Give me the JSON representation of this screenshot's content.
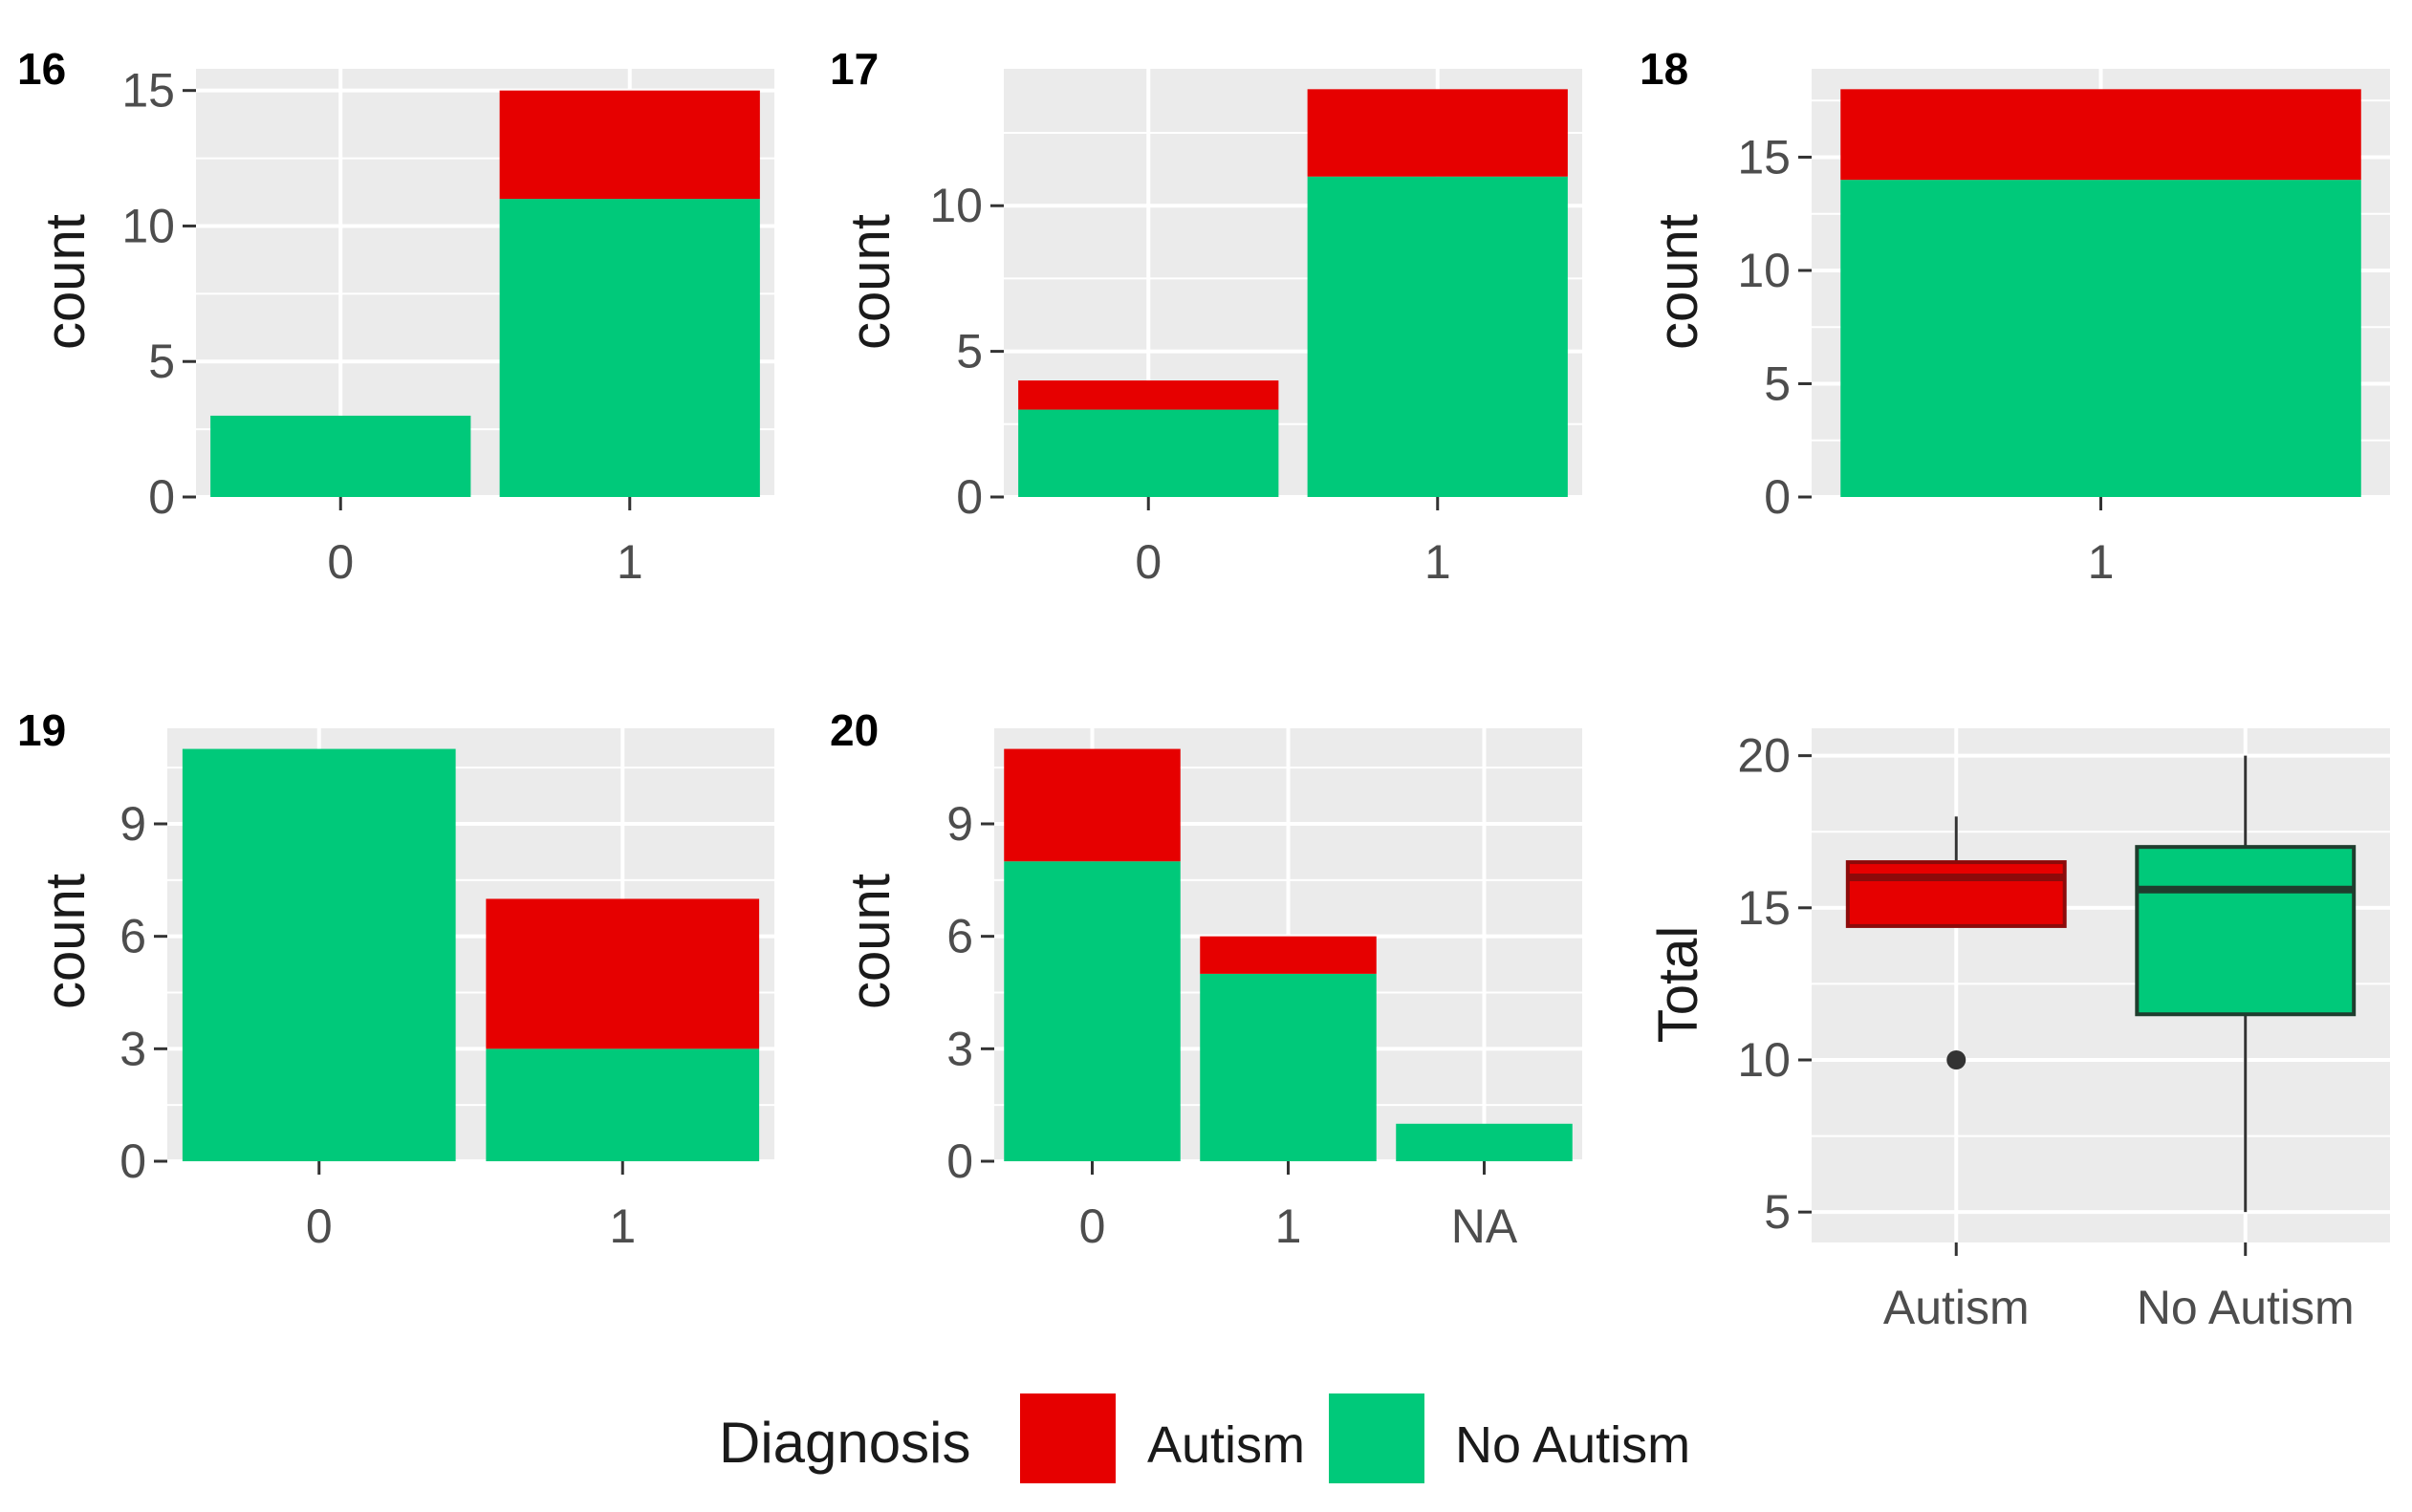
{
  "colors": {
    "autism": "#e60000",
    "no_autism": "#00c97a",
    "panel_bg": "#ebebeb",
    "grid": "#ffffff",
    "tick": "#4d4d4d"
  },
  "legend": {
    "title": "Diagnosis",
    "items": [
      {
        "label": "Autism",
        "color": "#e60000"
      },
      {
        "label": "No Autism",
        "color": "#00c97a"
      }
    ]
  },
  "chart_data": [
    {
      "panel": "16",
      "type": "bar",
      "stacked": true,
      "ylabel": "count",
      "xlabel": "",
      "categories": [
        "0",
        "1"
      ],
      "ylim": [
        0,
        15.8
      ],
      "yticks": [
        0,
        5,
        10,
        15
      ],
      "series": [
        {
          "name": "No Autism",
          "values": [
            3,
            11
          ]
        },
        {
          "name": "Autism",
          "values": [
            0,
            4
          ]
        }
      ]
    },
    {
      "panel": "17",
      "type": "bar",
      "stacked": true,
      "ylabel": "count",
      "xlabel": "",
      "categories": [
        "0",
        "1"
      ],
      "ylim": [
        0,
        14.7
      ],
      "yticks": [
        0,
        5,
        10
      ],
      "series": [
        {
          "name": "No Autism",
          "values": [
            3,
            11
          ]
        },
        {
          "name": "Autism",
          "values": [
            1,
            3
          ]
        }
      ]
    },
    {
      "panel": "18",
      "type": "bar",
      "stacked": true,
      "ylabel": "count",
      "xlabel": "",
      "categories": [
        "1"
      ],
      "ylim": [
        0,
        18.9
      ],
      "yticks": [
        0,
        5,
        10,
        15
      ],
      "series": [
        {
          "name": "No Autism",
          "values": [
            14
          ]
        },
        {
          "name": "Autism",
          "values": [
            4
          ]
        }
      ]
    },
    {
      "panel": "19",
      "type": "bar",
      "stacked": true,
      "ylabel": "count",
      "xlabel": "",
      "categories": [
        "0",
        "1"
      ],
      "ylim": [
        0,
        11.55
      ],
      "yticks": [
        0,
        3,
        6,
        9
      ],
      "series": [
        {
          "name": "No Autism",
          "values": [
            11,
            3
          ]
        },
        {
          "name": "Autism",
          "values": [
            0,
            4
          ]
        }
      ]
    },
    {
      "panel": "20",
      "type": "bar",
      "stacked": true,
      "ylabel": "count",
      "xlabel": "",
      "categories": [
        "0",
        "1",
        "NA"
      ],
      "ylim": [
        0,
        11.55
      ],
      "yticks": [
        0,
        3,
        6,
        9
      ],
      "series": [
        {
          "name": "No Autism",
          "values": [
            8,
            5,
            1
          ]
        },
        {
          "name": "Autism",
          "values": [
            3,
            1,
            0
          ]
        }
      ]
    },
    {
      "panel": "",
      "type": "boxplot",
      "ylabel": "Total",
      "xlabel": "",
      "categories": [
        "Autism",
        "No Autism"
      ],
      "ylim": [
        4,
        20.9
      ],
      "yticks": [
        5,
        10,
        15,
        20
      ],
      "boxes": [
        {
          "name": "Autism",
          "whisker_low": 14.4,
          "q1": 14.4,
          "median": 16,
          "q3": 16.5,
          "whisker_high": 18,
          "outliers": [
            10
          ]
        },
        {
          "name": "No Autism",
          "whisker_low": 5,
          "q1": 11.5,
          "median": 15.6,
          "q3": 17,
          "whisker_high": 20,
          "outliers": []
        }
      ]
    }
  ]
}
